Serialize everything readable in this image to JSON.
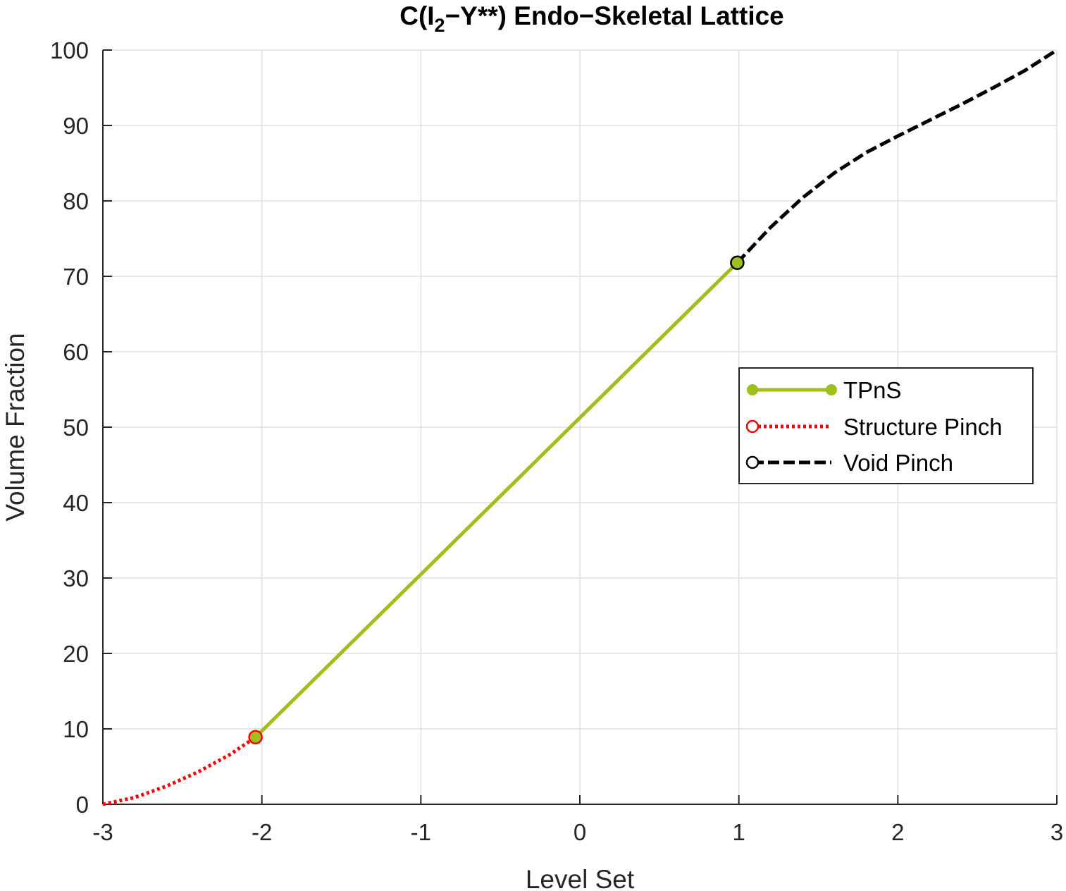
{
  "chart_data": {
    "type": "line",
    "title": {
      "prefix": "C(I",
      "subscript": "2",
      "suffix": "−Y**) Endo−Skeletal Lattice"
    },
    "xlabel": "Level Set",
    "ylabel": "Volume Fraction",
    "xlim": [
      -3,
      3
    ],
    "ylim": [
      0,
      100
    ],
    "xticks": [
      -3,
      -2,
      -1,
      0,
      1,
      2,
      3
    ],
    "yticks": [
      0,
      10,
      20,
      30,
      40,
      50,
      60,
      70,
      80,
      90,
      100
    ],
    "xtick_labels": [
      "-3",
      "-2",
      "-1",
      "0",
      "1",
      "2",
      "3"
    ],
    "ytick_labels": [
      "0",
      "10",
      "20",
      "30",
      "40",
      "50",
      "60",
      "70",
      "80",
      "90",
      "100"
    ],
    "grid": true,
    "legend_position": "right",
    "series": [
      {
        "name": "TPnS",
        "color": "#9fbf1a",
        "style": "solid",
        "marker": "filled-circle",
        "x": [
          -2.04,
          0.99
        ],
        "y": [
          8.9,
          71.8
        ]
      },
      {
        "name": "Structure Pinch",
        "color": "#ff0000",
        "style": "dotted",
        "marker": "open-circle",
        "x": [
          -3.0,
          -2.8,
          -2.6,
          -2.4,
          -2.2,
          -2.04
        ],
        "y": [
          0.0,
          0.9,
          2.4,
          4.3,
          6.6,
          8.9
        ]
      },
      {
        "name": "Void Pinch",
        "color": "#000000",
        "style": "dashed",
        "marker": "open-circle",
        "x": [
          0.99,
          1.2,
          1.4,
          1.6,
          1.8,
          2.0,
          2.2,
          2.4,
          2.6,
          2.8,
          3.0
        ],
        "y": [
          71.8,
          76.5,
          80.4,
          83.7,
          86.4,
          88.6,
          90.7,
          92.8,
          95.0,
          97.3,
          100.0
        ]
      }
    ],
    "transition_points": [
      {
        "x": -2.04,
        "y": 8.9,
        "fill": "#9fbf1a",
        "edge": "#ff0000"
      },
      {
        "x": 0.99,
        "y": 71.8,
        "fill": "#9fbf1a",
        "edge": "#000000"
      }
    ]
  }
}
